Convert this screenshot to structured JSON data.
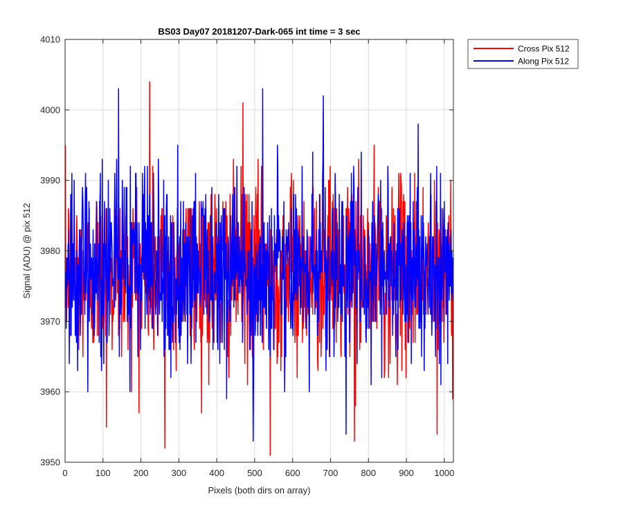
{
  "chart_data": {
    "type": "line",
    "title": "BS03 Day07 20181207-Dark-065 int time = 3 sec",
    "xlabel": "Pixels (both dirs on array)",
    "ylabel": "Signal (ADU) @ pix 512",
    "xlim": [
      0,
      1024
    ],
    "ylim": [
      3950,
      4010
    ],
    "xticks": [
      0,
      100,
      200,
      300,
      400,
      500,
      600,
      700,
      800,
      900,
      1000
    ],
    "yticks": [
      3950,
      3960,
      3970,
      3980,
      3990,
      4000,
      4010
    ],
    "grid": true,
    "legend_position": "outside-top-right",
    "n_points": 1024,
    "series": [
      {
        "name": "Cross Pix 512",
        "color": "#ff0000",
        "mean": 3977,
        "notable_points": [
          [
            108,
            3955
          ],
          [
            222,
            4004
          ],
          [
            262,
            3952
          ],
          [
            468,
            4001
          ],
          [
            540,
            3951
          ],
          [
            762,
            3953
          ],
          [
            980,
            3954
          ]
        ]
      },
      {
        "name": "Along Pix 512",
        "color": "#0000ff",
        "mean": 3977,
        "notable_points": [
          [
            140,
            4003
          ],
          [
            520,
            4003
          ],
          [
            495,
            3953
          ],
          [
            680,
            4002
          ],
          [
            740,
            3954
          ],
          [
            930,
            3998
          ]
        ]
      }
    ]
  }
}
